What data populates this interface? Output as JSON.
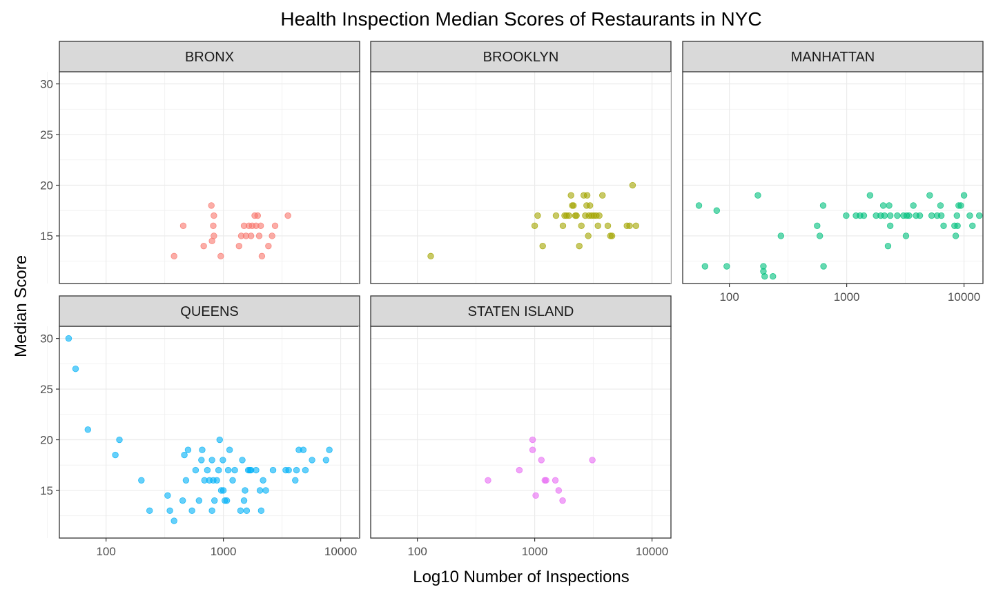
{
  "chart_data": {
    "type": "scatter",
    "title": "Health Inspection Median Scores of Restaurants in NYC",
    "xlabel": "Log10 Number of Inspections",
    "ylabel": "Median Score",
    "x_scale": "log10",
    "x_ticks": [
      100,
      1000,
      10000
    ],
    "x_tick_labels": [
      "100",
      "1000",
      "10000"
    ],
    "y_ticks": [
      15,
      20,
      25,
      30
    ],
    "y_tick_labels": [
      "15",
      "20",
      "25",
      "30"
    ],
    "grid": true,
    "facets": [
      {
        "name": "BRONX",
        "color": "#F8766D",
        "points": [
          [
            380,
            13
          ],
          [
            455,
            16
          ],
          [
            680,
            14
          ],
          [
            790,
            18
          ],
          [
            800,
            14.5
          ],
          [
            820,
            16
          ],
          [
            830,
            15
          ],
          [
            830,
            17
          ],
          [
            950,
            13
          ],
          [
            1360,
            14
          ],
          [
            1420,
            15
          ],
          [
            1500,
            16
          ],
          [
            1560,
            15
          ],
          [
            1650,
            16
          ],
          [
            1720,
            15
          ],
          [
            1760,
            16
          ],
          [
            1850,
            17
          ],
          [
            1900,
            16
          ],
          [
            1960,
            17
          ],
          [
            2020,
            15
          ],
          [
            2080,
            16
          ],
          [
            2130,
            13
          ],
          [
            2420,
            14
          ],
          [
            2600,
            15
          ],
          [
            2760,
            16
          ],
          [
            3550,
            17
          ]
        ]
      },
      {
        "name": "BROOKLYN",
        "color": "#A3A500",
        "points": [
          [
            130,
            13
          ],
          [
            1000,
            16
          ],
          [
            1060,
            17
          ],
          [
            1170,
            14
          ],
          [
            1520,
            17
          ],
          [
            1740,
            16
          ],
          [
            1800,
            17
          ],
          [
            1870,
            17
          ],
          [
            1960,
            17
          ],
          [
            2040,
            19
          ],
          [
            2090,
            18
          ],
          [
            2140,
            18
          ],
          [
            2220,
            17
          ],
          [
            2270,
            17
          ],
          [
            2400,
            14
          ],
          [
            2500,
            16
          ],
          [
            2620,
            19
          ],
          [
            2700,
            17
          ],
          [
            2770,
            18
          ],
          [
            2800,
            19
          ],
          [
            2860,
            15
          ],
          [
            2900,
            17
          ],
          [
            2960,
            18
          ],
          [
            3050,
            17
          ],
          [
            3200,
            17
          ],
          [
            3350,
            17
          ],
          [
            3460,
            16
          ],
          [
            3550,
            17
          ],
          [
            3780,
            19
          ],
          [
            4200,
            16
          ],
          [
            4420,
            15
          ],
          [
            4560,
            15
          ],
          [
            6110,
            16
          ],
          [
            6440,
            16
          ],
          [
            6830,
            20
          ],
          [
            7300,
            16
          ]
        ]
      },
      {
        "name": "MANHATTAN",
        "color": "#00BF7D",
        "points": [
          [
            55,
            18
          ],
          [
            62,
            12
          ],
          [
            78,
            17.5
          ],
          [
            95,
            12
          ],
          [
            175,
            19
          ],
          [
            195,
            12
          ],
          [
            195,
            11.5
          ],
          [
            200,
            11
          ],
          [
            235,
            11
          ],
          [
            275,
            15
          ],
          [
            560,
            16
          ],
          [
            590,
            15
          ],
          [
            630,
            18
          ],
          [
            635,
            12
          ],
          [
            990,
            17
          ],
          [
            1200,
            17
          ],
          [
            1300,
            17
          ],
          [
            1400,
            17
          ],
          [
            1580,
            19
          ],
          [
            1780,
            17
          ],
          [
            1950,
            17
          ],
          [
            2050,
            18
          ],
          [
            2100,
            17
          ],
          [
            2250,
            14
          ],
          [
            2300,
            18
          ],
          [
            2350,
            16
          ],
          [
            2350,
            17
          ],
          [
            2700,
            17
          ],
          [
            3050,
            17
          ],
          [
            3200,
            15
          ],
          [
            3250,
            17
          ],
          [
            3400,
            17
          ],
          [
            3700,
            18
          ],
          [
            3900,
            17
          ],
          [
            4200,
            17
          ],
          [
            5100,
            19
          ],
          [
            5300,
            17
          ],
          [
            5900,
            17
          ],
          [
            6300,
            18
          ],
          [
            6400,
            17
          ],
          [
            6700,
            16
          ],
          [
            8300,
            16
          ],
          [
            8500,
            15
          ],
          [
            8700,
            17
          ],
          [
            8800,
            16
          ],
          [
            9000,
            18
          ],
          [
            9400,
            18
          ],
          [
            10000,
            19
          ],
          [
            11200,
            17
          ],
          [
            11800,
            16
          ],
          [
            13500,
            17
          ]
        ]
      },
      {
        "name": "QUEENS",
        "color": "#00B0F6",
        "points": [
          [
            48,
            30
          ],
          [
            55,
            27
          ],
          [
            70,
            21
          ],
          [
            120,
            18.5
          ],
          [
            130,
            20
          ],
          [
            200,
            16
          ],
          [
            235,
            13
          ],
          [
            335,
            14.5
          ],
          [
            350,
            13
          ],
          [
            380,
            12
          ],
          [
            450,
            14
          ],
          [
            465,
            18.5
          ],
          [
            480,
            16
          ],
          [
            500,
            19
          ],
          [
            540,
            13
          ],
          [
            580,
            17
          ],
          [
            620,
            14
          ],
          [
            650,
            18
          ],
          [
            660,
            19
          ],
          [
            690,
            16
          ],
          [
            730,
            17
          ],
          [
            760,
            16
          ],
          [
            800,
            13
          ],
          [
            800,
            18
          ],
          [
            820,
            16
          ],
          [
            840,
            14
          ],
          [
            880,
            16
          ],
          [
            910,
            17
          ],
          [
            930,
            20
          ],
          [
            960,
            15
          ],
          [
            990,
            18
          ],
          [
            1000,
            15
          ],
          [
            1030,
            14
          ],
          [
            1070,
            14
          ],
          [
            1100,
            17
          ],
          [
            1130,
            19
          ],
          [
            1200,
            16
          ],
          [
            1250,
            17
          ],
          [
            1400,
            13
          ],
          [
            1450,
            18
          ],
          [
            1500,
            14
          ],
          [
            1530,
            15
          ],
          [
            1580,
            13
          ],
          [
            1630,
            17
          ],
          [
            1680,
            17
          ],
          [
            1720,
            17
          ],
          [
            1900,
            17
          ],
          [
            2050,
            15
          ],
          [
            2100,
            13
          ],
          [
            2180,
            16
          ],
          [
            2300,
            15
          ],
          [
            2650,
            17
          ],
          [
            3400,
            17
          ],
          [
            3600,
            17
          ],
          [
            4100,
            16
          ],
          [
            4200,
            17
          ],
          [
            4400,
            19
          ],
          [
            4800,
            19
          ],
          [
            5000,
            17
          ],
          [
            5700,
            18
          ],
          [
            7500,
            18
          ],
          [
            8000,
            19
          ]
        ]
      },
      {
        "name": "STATEN ISLAND",
        "color": "#E76BF3",
        "points": [
          [
            400,
            16
          ],
          [
            740,
            17
          ],
          [
            960,
            19
          ],
          [
            960,
            20
          ],
          [
            1020,
            14.5
          ],
          [
            1140,
            18
          ],
          [
            1220,
            16
          ],
          [
            1250,
            16
          ],
          [
            1500,
            16
          ],
          [
            1600,
            15
          ],
          [
            1730,
            14
          ],
          [
            3100,
            18
          ]
        ]
      }
    ]
  }
}
